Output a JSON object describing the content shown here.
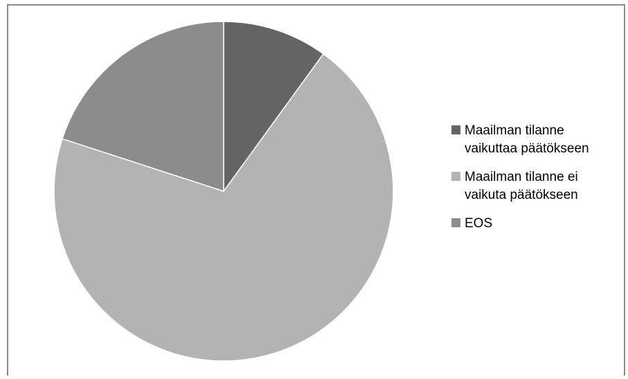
{
  "chart_data": {
    "type": "pie",
    "title": "",
    "slices": [
      {
        "label": "Maailman tilanne vaikuttaa päätökseen",
        "value": 10,
        "color": "#646464"
      },
      {
        "label": "Maailman tilanne ei vaikuta päätökseen",
        "value": 70,
        "color": "#b3b3b3"
      },
      {
        "label": "EOS",
        "value": 20,
        "color": "#8c8c8c"
      }
    ],
    "legend_position": "right"
  },
  "legend": {
    "items": [
      {
        "line1": "Maailman tilanne",
        "line2": "vaikuttaa päätökseen"
      },
      {
        "line1": "Maailman tilanne ei",
        "line2": "vaikuta päätökseen"
      },
      {
        "line1": "EOS",
        "line2": ""
      }
    ]
  }
}
